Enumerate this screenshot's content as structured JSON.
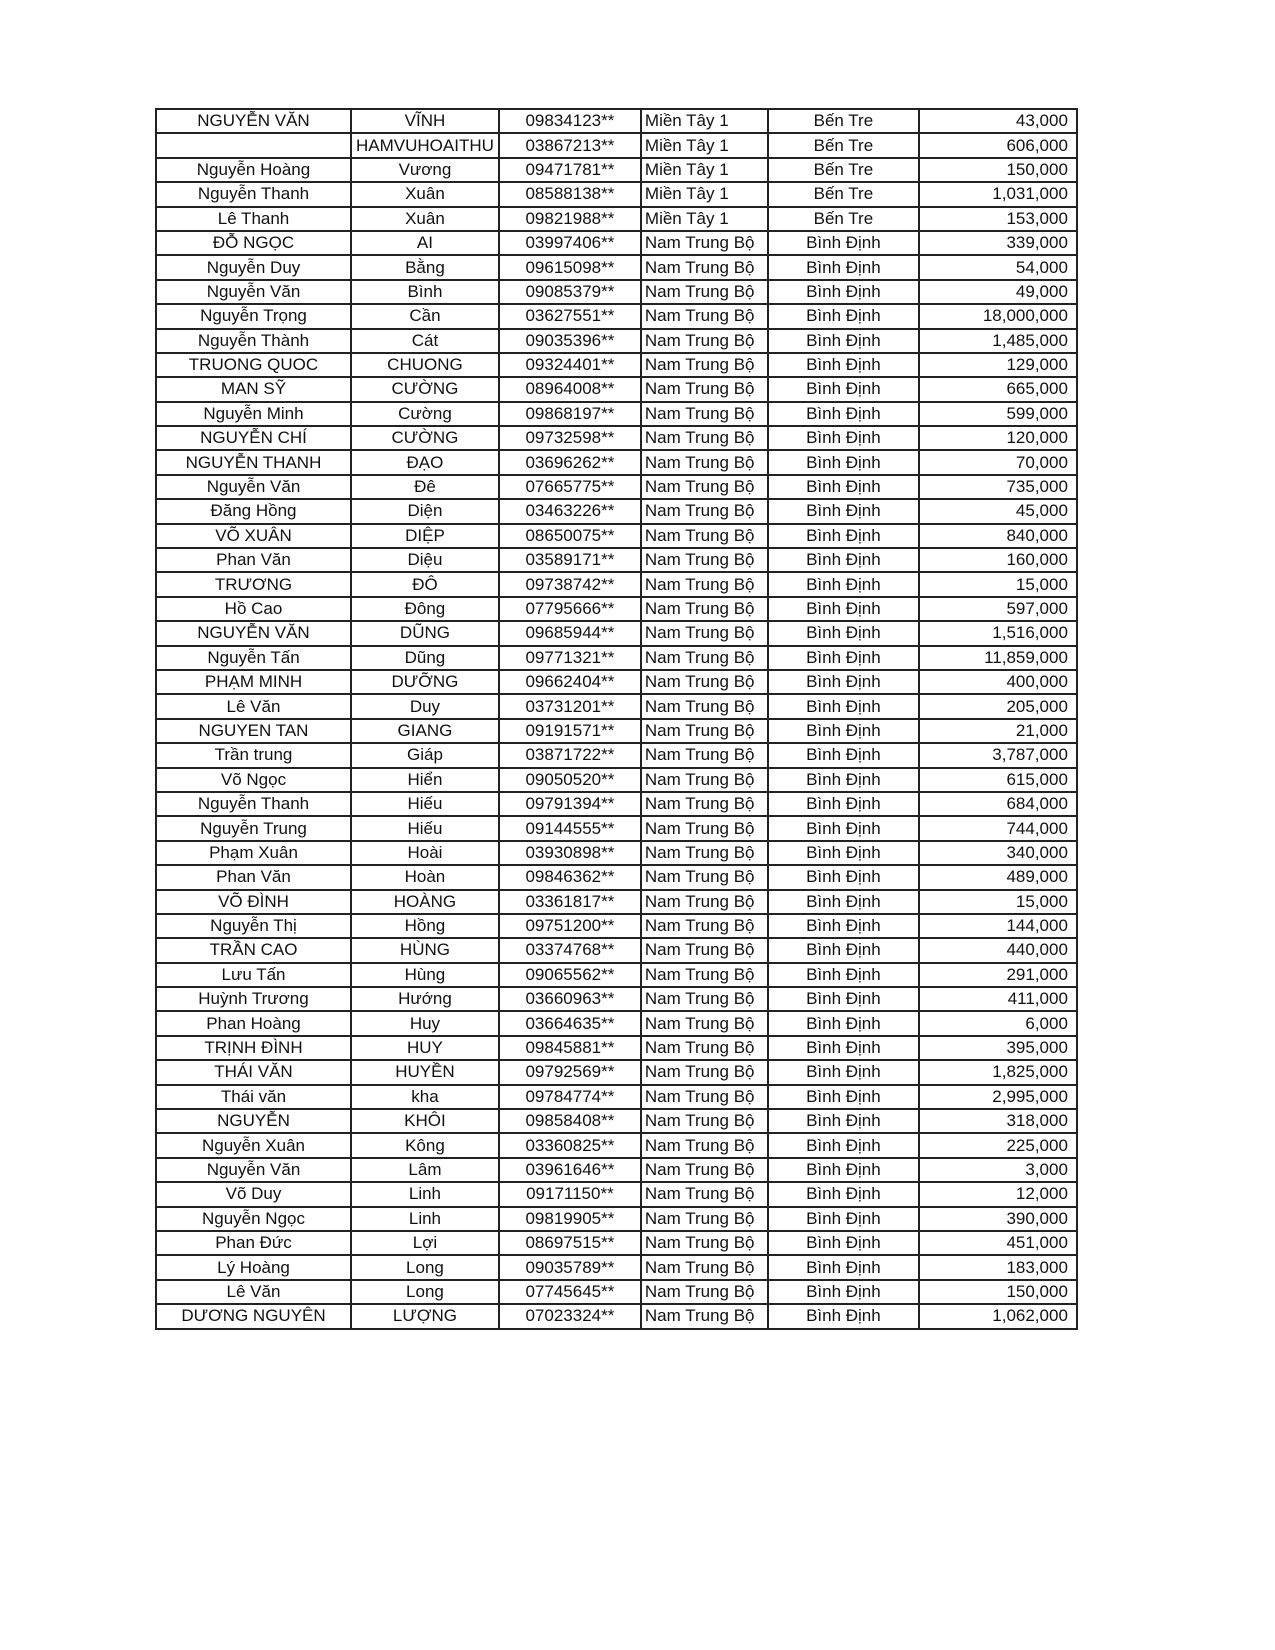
{
  "table": {
    "rows": [
      [
        "NGUYỄN VĂN",
        "VĨNH",
        "09834123**",
        "Miền Tây 1",
        "Bến Tre",
        "43,000"
      ],
      [
        "",
        "HAMVUHOAITHU",
        "03867213**",
        "Miền Tây 1",
        "Bến Tre",
        "606,000"
      ],
      [
        "Nguyễn Hoàng",
        "Vương",
        "09471781**",
        "Miền Tây 1",
        "Bến Tre",
        "150,000"
      ],
      [
        "Nguyễn Thanh",
        "Xuân",
        "08588138**",
        "Miền Tây 1",
        "Bến Tre",
        "1,031,000"
      ],
      [
        "Lê Thanh",
        "Xuân",
        "09821988**",
        "Miền Tây 1",
        "Bến Tre",
        "153,000"
      ],
      [
        "ĐỖ NGỌC",
        "AI",
        "03997406**",
        "Nam Trung Bộ",
        "Bình Định",
        "339,000"
      ],
      [
        "Nguyễn Duy",
        "Bằng",
        "09615098**",
        "Nam Trung Bộ",
        "Bình Định",
        "54,000"
      ],
      [
        "Nguyễn Văn",
        "Bình",
        "09085379**",
        "Nam Trung Bộ",
        "Bình Định",
        "49,000"
      ],
      [
        "Nguyễn Trọng",
        "Cần",
        "03627551**",
        "Nam Trung Bộ",
        "Bình Định",
        "18,000,000"
      ],
      [
        "Nguyễn Thành",
        "Cát",
        "09035396**",
        "Nam Trung Bộ",
        "Bình Định",
        "1,485,000"
      ],
      [
        "TRUONG QUOC",
        "CHUONG",
        "09324401**",
        "Nam Trung Bộ",
        "Bình Định",
        "129,000"
      ],
      [
        "MAN SỸ",
        "CƯỜNG",
        "08964008**",
        "Nam Trung Bộ",
        "Bình Định",
        "665,000"
      ],
      [
        "Nguyễn Minh",
        "Cường",
        "09868197**",
        "Nam Trung Bộ",
        "Bình Định",
        "599,000"
      ],
      [
        "NGUYỄN CHÍ",
        "CƯỜNG",
        "09732598**",
        "Nam Trung Bộ",
        "Bình Định",
        "120,000"
      ],
      [
        "NGUYỄN THANH",
        "ĐẠO",
        "03696262**",
        "Nam Trung Bộ",
        "Bình Định",
        "70,000"
      ],
      [
        "Nguyễn Văn",
        "Đê",
        "07665775**",
        "Nam Trung Bộ",
        "Bình Định",
        "735,000"
      ],
      [
        "Đăng Hồng",
        "Diện",
        "03463226**",
        "Nam Trung Bộ",
        "Bình Định",
        "45,000"
      ],
      [
        "VÕ XUÂN",
        "DIỆP",
        "08650075**",
        "Nam Trung Bộ",
        "Bình Định",
        "840,000"
      ],
      [
        "Phan Văn",
        "Diệu",
        "03589171**",
        "Nam Trung Bộ",
        "Bình Định",
        "160,000"
      ],
      [
        "TRƯƠNG",
        "ĐÔ",
        "09738742**",
        "Nam Trung Bộ",
        "Bình Định",
        "15,000"
      ],
      [
        "Hồ Cao",
        "Đông",
        "07795666**",
        "Nam Trung Bộ",
        "Bình Định",
        "597,000"
      ],
      [
        "NGUYỄN VĂN",
        "DŨNG",
        "09685944**",
        "Nam Trung Bộ",
        "Bình Định",
        "1,516,000"
      ],
      [
        "Nguyễn Tấn",
        "Dũng",
        "09771321**",
        "Nam Trung Bộ",
        "Bình Định",
        "11,859,000"
      ],
      [
        "PHẠM MINH",
        "DƯỠNG",
        "09662404**",
        "Nam Trung Bộ",
        "Bình Định",
        "400,000"
      ],
      [
        "Lê Văn",
        "Duy",
        "03731201**",
        "Nam Trung Bộ",
        "Bình Định",
        "205,000"
      ],
      [
        "NGUYEN TAN",
        "GIANG",
        "09191571**",
        "Nam Trung Bộ",
        "Bình Định",
        "21,000"
      ],
      [
        "Trần trung",
        "Giáp",
        "03871722**",
        "Nam Trung Bộ",
        "Bình Định",
        "3,787,000"
      ],
      [
        "Võ Ngọc",
        "Hiển",
        "09050520**",
        "Nam Trung Bộ",
        "Bình Định",
        "615,000"
      ],
      [
        "Nguyễn Thanh",
        "Hiếu",
        "09791394**",
        "Nam Trung Bộ",
        "Bình Định",
        "684,000"
      ],
      [
        "Nguyễn Trung",
        "Hiếu",
        "09144555**",
        "Nam Trung Bộ",
        "Bình Định",
        "744,000"
      ],
      [
        "Phạm Xuân",
        "Hoài",
        "03930898**",
        "Nam Trung Bộ",
        "Bình Định",
        "340,000"
      ],
      [
        "Phan Văn",
        "Hoàn",
        "09846362**",
        "Nam Trung Bộ",
        "Bình Định",
        "489,000"
      ],
      [
        "VÕ ĐÌNH",
        "HOÀNG",
        "03361817**",
        "Nam Trung Bộ",
        "Bình Định",
        "15,000"
      ],
      [
        "Nguyễn Thị",
        "Hồng",
        "09751200**",
        "Nam Trung Bộ",
        "Bình Định",
        "144,000"
      ],
      [
        "TRẦN CAO",
        "HÙNG",
        "03374768**",
        "Nam Trung Bộ",
        "Bình Định",
        "440,000"
      ],
      [
        "Lưu Tấn",
        "Hùng",
        "09065562**",
        "Nam Trung Bộ",
        "Bình Định",
        "291,000"
      ],
      [
        "Huỳnh Trương",
        "Hướng",
        "03660963**",
        "Nam Trung Bộ",
        "Bình Định",
        "411,000"
      ],
      [
        "Phan Hoàng",
        "Huy",
        "03664635**",
        "Nam Trung Bộ",
        "Bình Định",
        "6,000"
      ],
      [
        "TRỊNH ĐÌNH",
        "HUY",
        "09845881**",
        "Nam Trung Bộ",
        "Bình Định",
        "395,000"
      ],
      [
        "THÁI VĂN",
        "HUYỀN",
        "09792569**",
        "Nam Trung Bộ",
        "Bình Định",
        "1,825,000"
      ],
      [
        "Thái văn",
        "kha",
        "09784774**",
        "Nam Trung Bộ",
        "Bình Định",
        "2,995,000"
      ],
      [
        "NGUYỄN",
        "KHÔI",
        "09858408**",
        "Nam Trung Bộ",
        "Bình Định",
        "318,000"
      ],
      [
        "Nguyễn Xuân",
        "Kông",
        "03360825**",
        "Nam Trung Bộ",
        "Bình Định",
        "225,000"
      ],
      [
        "Nguyễn Văn",
        "Lâm",
        "03961646**",
        "Nam Trung Bộ",
        "Bình Định",
        "3,000"
      ],
      [
        "Võ Duy",
        "Linh",
        "09171150**",
        "Nam Trung Bộ",
        "Bình Định",
        "12,000"
      ],
      [
        "Nguyễn Ngọc",
        "Linh",
        "09819905**",
        "Nam Trung Bộ",
        "Bình Định",
        "390,000"
      ],
      [
        "Phan Đức",
        "Lợi",
        "08697515**",
        "Nam Trung Bộ",
        "Bình Định",
        "451,000"
      ],
      [
        "Lý Hoàng",
        "Long",
        "09035789**",
        "Nam Trung Bộ",
        "Bình Định",
        "183,000"
      ],
      [
        "Lê Văn",
        "Long",
        "07745645**",
        "Nam Trung Bộ",
        "Bình Định",
        "150,000"
      ],
      [
        "DƯƠNG NGUYÊN",
        "LƯỢNG",
        "07023324**",
        "Nam Trung Bộ",
        "Bình Định",
        "1,062,000"
      ]
    ]
  }
}
